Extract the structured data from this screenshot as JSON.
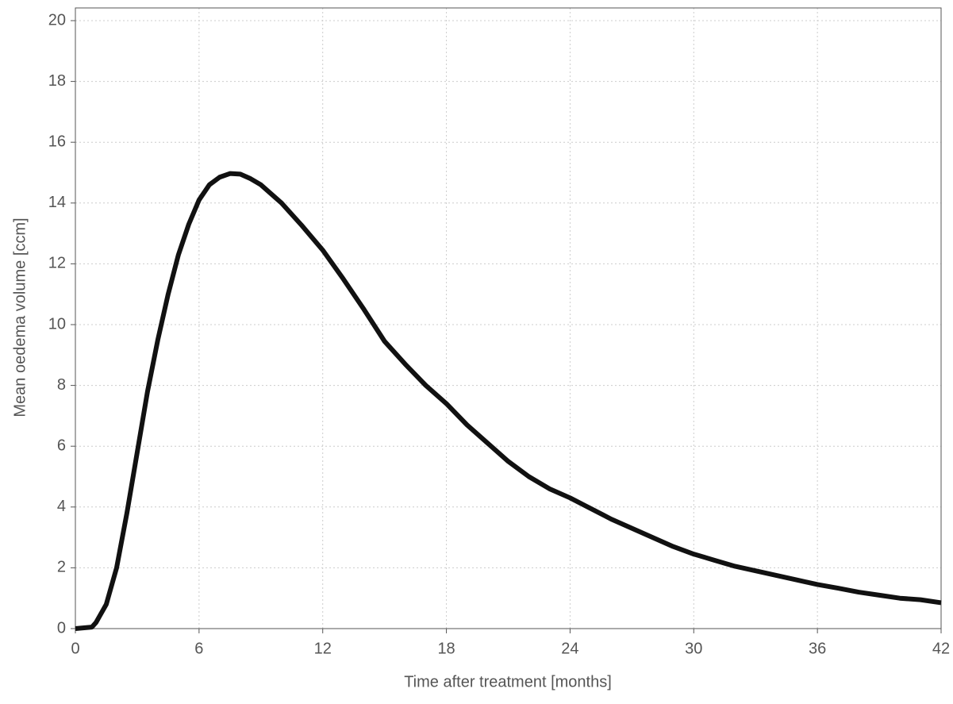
{
  "chart_data": {
    "type": "line",
    "xlabel": "Time after treatment [months]",
    "ylabel": "Mean oedema volume [ccm]",
    "x": [
      0,
      0.8,
      1,
      1.5,
      2,
      2.5,
      3,
      3.5,
      4,
      4.5,
      5,
      5.5,
      6,
      6.5,
      7,
      7.5,
      8,
      8.5,
      9,
      10,
      11,
      12,
      13,
      14,
      15,
      16,
      17,
      18,
      19,
      20,
      21,
      22,
      23,
      24,
      25,
      26,
      27,
      28,
      29,
      30,
      31,
      32,
      33,
      34,
      35,
      36,
      37,
      38,
      39,
      40,
      41,
      42
    ],
    "series": [
      {
        "color": "#111111",
        "values": [
          0,
          0.05,
          0.2,
          0.8,
          2.0,
          3.8,
          5.8,
          7.8,
          9.5,
          11.0,
          12.3,
          13.3,
          14.1,
          14.6,
          14.85,
          14.97,
          14.95,
          14.8,
          14.6,
          14.0,
          13.25,
          12.45,
          11.5,
          10.5,
          9.45,
          8.7,
          8.0,
          7.4,
          6.7,
          6.1,
          5.5,
          5.0,
          4.6,
          4.3,
          3.95,
          3.6,
          3.3,
          3.0,
          2.7,
          2.45,
          2.25,
          2.05,
          1.9,
          1.75,
          1.6,
          1.45,
          1.33,
          1.2,
          1.1,
          1.0,
          0.95,
          0.85
        ]
      }
    ],
    "xlim": [
      0,
      42
    ],
    "xticks": [
      0,
      6,
      12,
      18,
      24,
      30,
      36,
      42
    ],
    "ylim": [
      0,
      20
    ],
    "yticks": [
      0,
      2,
      4,
      6,
      8,
      10,
      12,
      14,
      16,
      18,
      20
    ],
    "grid": true
  }
}
